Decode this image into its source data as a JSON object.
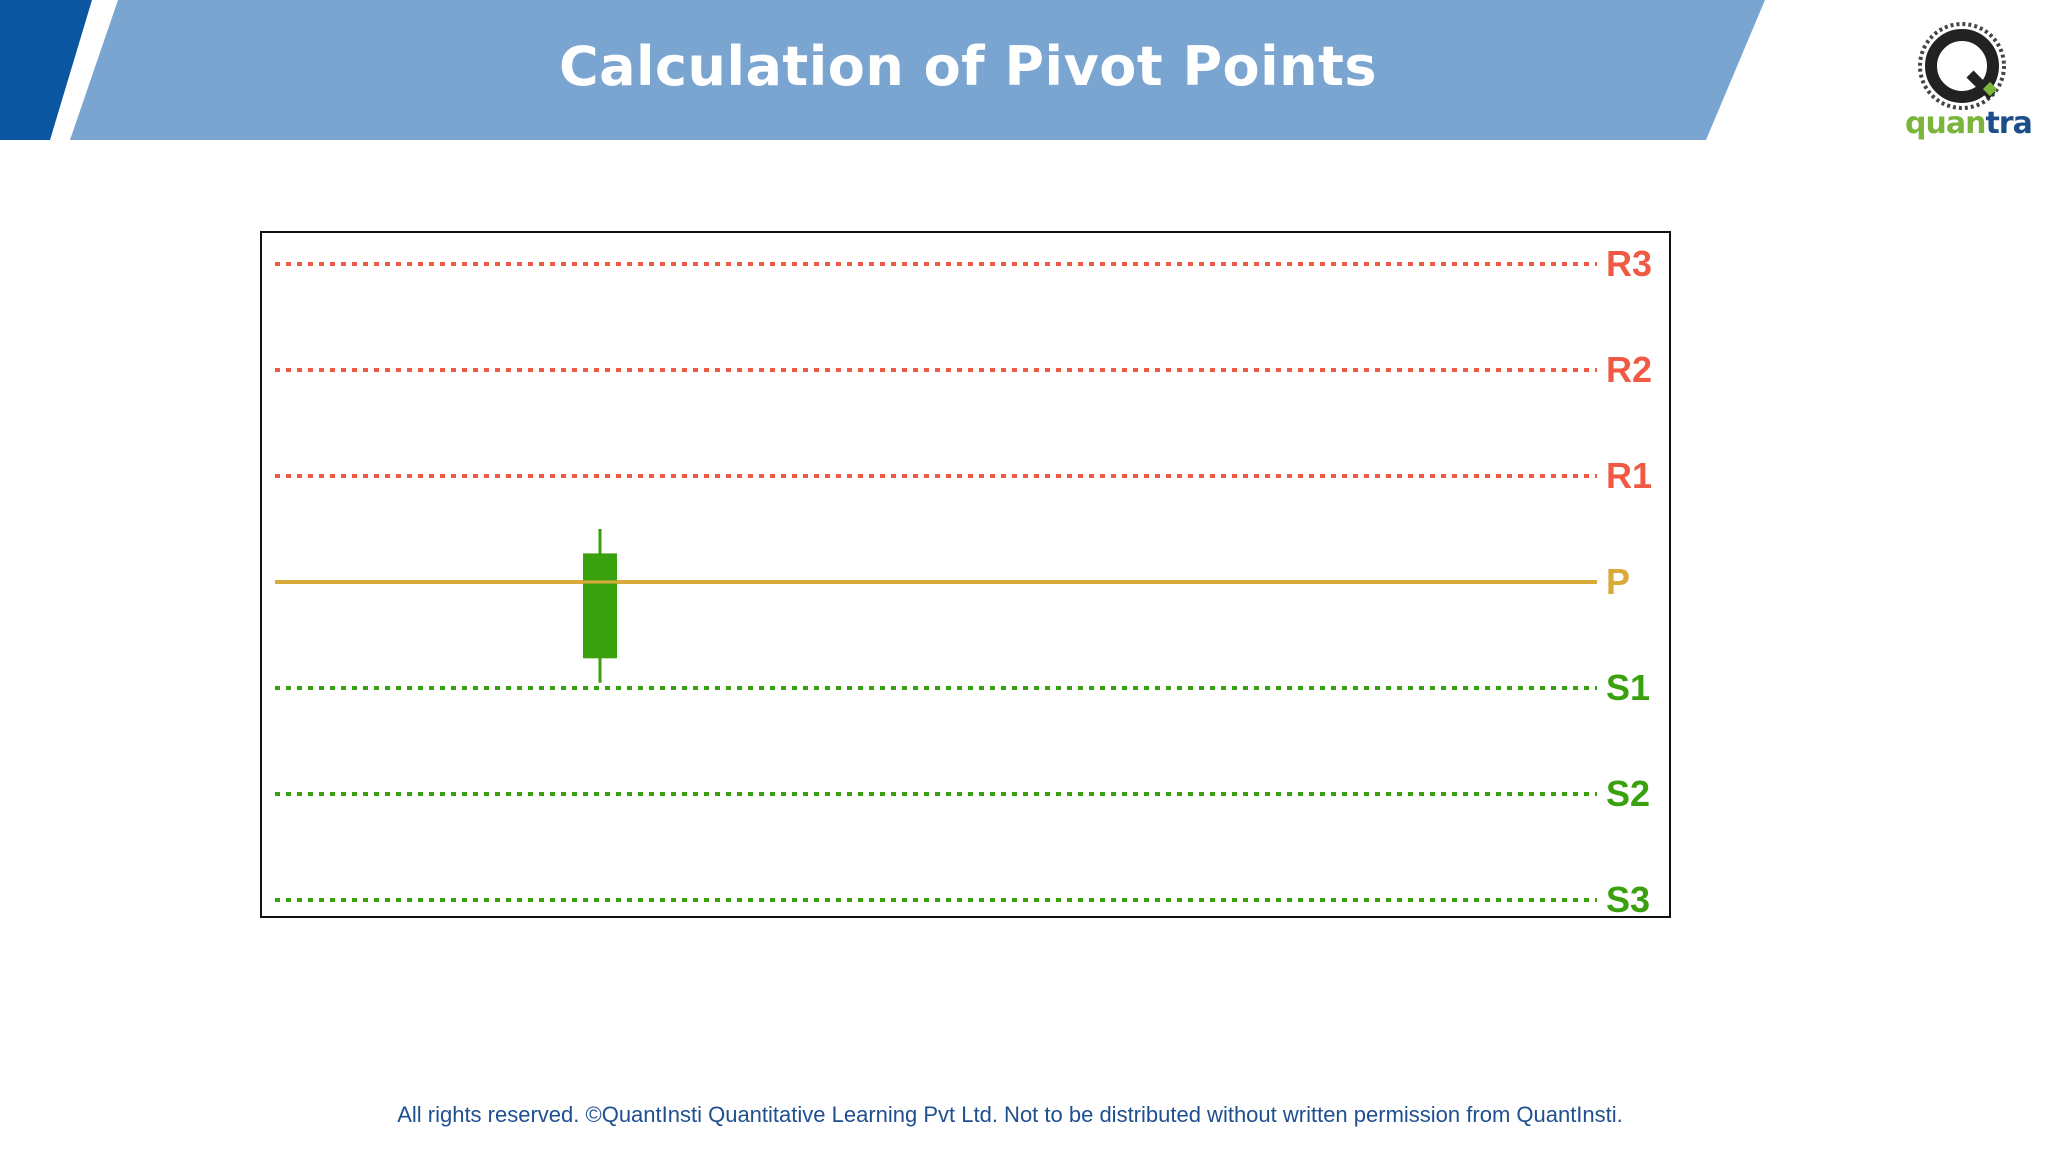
{
  "header": {
    "title": "Calculation of Pivot Points"
  },
  "logo": {
    "name": "quantra",
    "text_q": "quan",
    "text_t": "tra",
    "icon": "quantra-logo-icon",
    "colors": {
      "green": "#7bb53c",
      "blue": "#1c4f8a",
      "dark": "#222222"
    }
  },
  "chart_data": {
    "type": "line",
    "title": "",
    "levels": [
      {
        "label": "R3",
        "value": 3,
        "style": "dotted",
        "color": "#f05a45"
      },
      {
        "label": "R2",
        "value": 2,
        "style": "dotted",
        "color": "#f05a45"
      },
      {
        "label": "R1",
        "value": 1,
        "style": "dotted",
        "color": "#f05a45"
      },
      {
        "label": "P",
        "value": 0,
        "style": "solid",
        "color": "#d9a93a"
      },
      {
        "label": "S1",
        "value": -1,
        "style": "dotted",
        "color": "#3aa10e"
      },
      {
        "label": "S2",
        "value": -2,
        "style": "dotted",
        "color": "#3aa10e"
      },
      {
        "label": "S3",
        "value": -3,
        "style": "dotted",
        "color": "#3aa10e"
      }
    ],
    "candle": {
      "color": "#3aa10e",
      "high": 0.5,
      "open": -0.72,
      "close": 0.27,
      "low": -0.95
    },
    "ylim": [
      -3,
      3
    ],
    "grid": false,
    "legend": "none"
  },
  "footer": {
    "text": "All rights reserved. ©QuantInsti Quantitative Learning Pvt Ltd. Not to be distributed without written permission from QuantInsti."
  }
}
